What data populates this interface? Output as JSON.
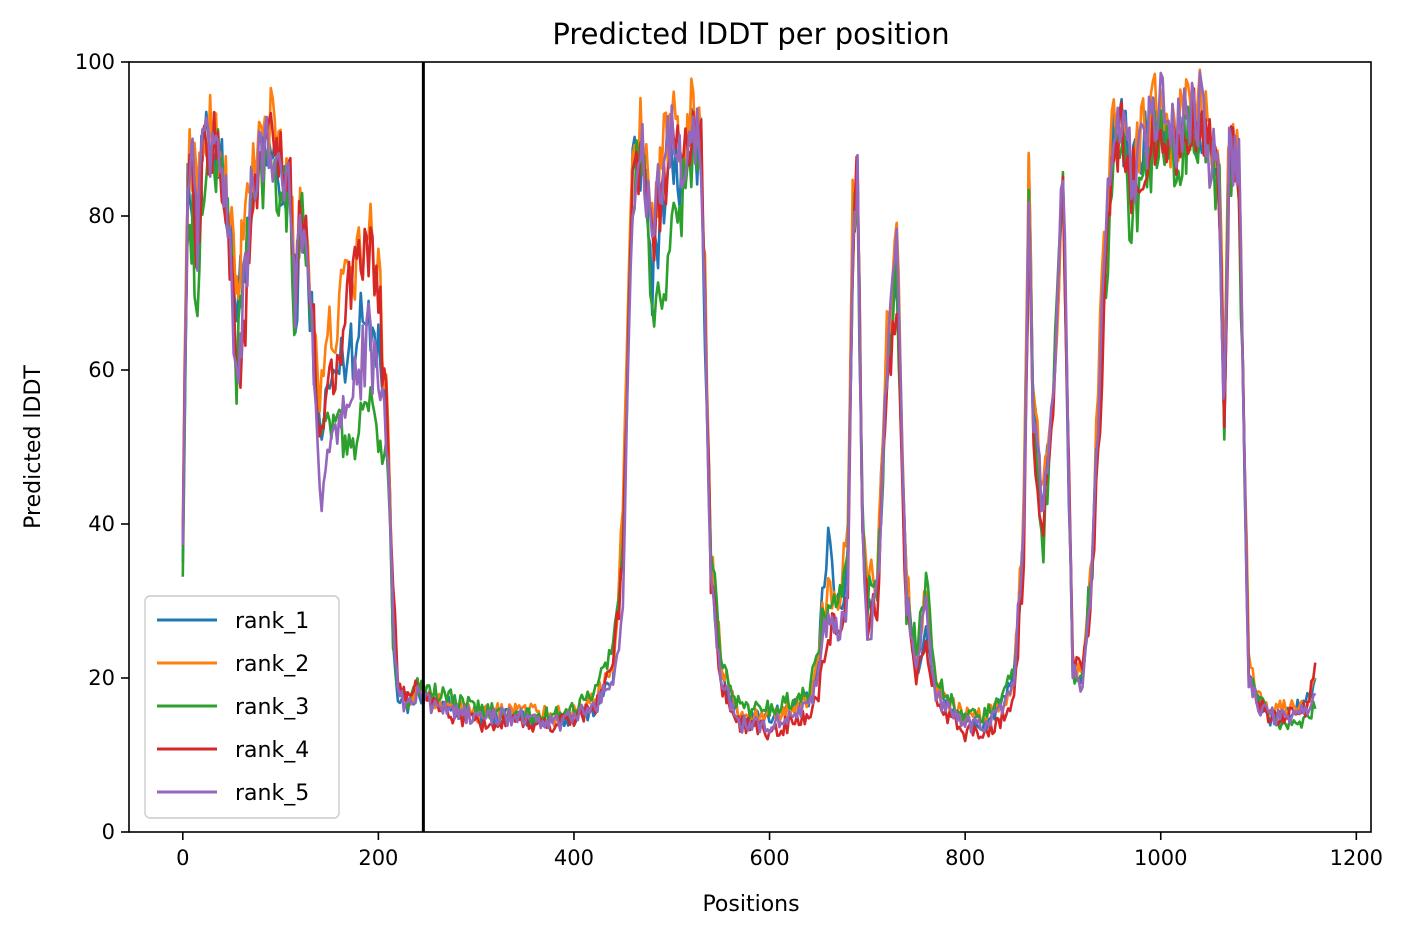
{
  "chart_data": {
    "type": "line",
    "title": "Predicted lDDT per position",
    "xlabel": "Positions",
    "ylabel": "Predicted lDDT",
    "xlim": [
      -55,
      1215
    ],
    "ylim": [
      0,
      100
    ],
    "xticks": [
      0,
      200,
      400,
      600,
      800,
      1000,
      1200
    ],
    "yticks": [
      0,
      20,
      40,
      60,
      80,
      100
    ],
    "grid": false,
    "legend_position": "lower-left",
    "vline": 246,
    "series": [
      {
        "name": "rank_1",
        "color": "#1f77b4",
        "x": [
          0,
          5,
          10,
          15,
          20,
          30,
          40,
          50,
          55,
          60,
          70,
          80,
          90,
          100,
          110,
          115,
          120,
          130,
          140,
          150,
          160,
          170,
          180,
          190,
          200,
          210,
          215,
          220,
          230,
          240,
          260,
          300,
          340,
          380,
          400,
          420,
          440,
          450,
          460,
          470,
          480,
          490,
          500,
          510,
          520,
          530,
          540,
          550,
          570,
          600,
          620,
          640,
          650,
          660,
          670,
          680,
          685,
          690,
          695,
          700,
          710,
          720,
          730,
          740,
          750,
          760,
          770,
          780,
          800,
          820,
          840,
          850,
          860,
          865,
          870,
          880,
          890,
          900,
          910,
          920,
          930,
          940,
          950,
          960,
          970,
          980,
          990,
          1000,
          1010,
          1020,
          1030,
          1040,
          1050,
          1060,
          1065,
          1070,
          1080,
          1090,
          1100,
          1110,
          1130,
          1150,
          1158
        ],
        "y": [
          38,
          82,
          84,
          77,
          88,
          90,
          87,
          76,
          68,
          72,
          82,
          86,
          88,
          84,
          80,
          64,
          80,
          70,
          52,
          58,
          60,
          63,
          65,
          68,
          64,
          52,
          25,
          18,
          16,
          18,
          17,
          15,
          15,
          14,
          15,
          16,
          20,
          40,
          85,
          88,
          72,
          82,
          88,
          84,
          90,
          88,
          35,
          20,
          15,
          15,
          16,
          17,
          22,
          39,
          28,
          35,
          78,
          86,
          40,
          30,
          32,
          62,
          73,
          32,
          20,
          26,
          18,
          17,
          14,
          14,
          17,
          20,
          40,
          83,
          55,
          42,
          58,
          84,
          20,
          20,
          35,
          68,
          90,
          92,
          85,
          88,
          92,
          93,
          88,
          90,
          92,
          92,
          88,
          80,
          50,
          88,
          86,
          20,
          17,
          15,
          15,
          17,
          20
        ]
      },
      {
        "name": "rank_2",
        "color": "#ff7f0e",
        "x": [
          0,
          5,
          10,
          15,
          20,
          30,
          40,
          50,
          55,
          60,
          70,
          80,
          90,
          100,
          110,
          115,
          120,
          130,
          140,
          150,
          160,
          170,
          180,
          190,
          200,
          210,
          215,
          220,
          230,
          240,
          260,
          300,
          340,
          380,
          400,
          420,
          440,
          450,
          460,
          470,
          480,
          490,
          500,
          510,
          520,
          530,
          540,
          550,
          570,
          600,
          620,
          640,
          650,
          660,
          670,
          680,
          685,
          690,
          695,
          700,
          710,
          720,
          730,
          740,
          750,
          760,
          770,
          780,
          800,
          820,
          840,
          850,
          860,
          865,
          870,
          880,
          890,
          900,
          910,
          920,
          930,
          940,
          950,
          960,
          970,
          980,
          990,
          1000,
          1010,
          1020,
          1030,
          1040,
          1050,
          1060,
          1065,
          1070,
          1080,
          1090,
          1100,
          1110,
          1130,
          1150,
          1158
        ],
        "y": [
          42,
          86,
          88,
          80,
          90,
          92,
          88,
          78,
          70,
          75,
          86,
          90,
          92,
          88,
          84,
          70,
          84,
          74,
          56,
          64,
          68,
          72,
          74,
          78,
          72,
          55,
          28,
          19,
          17,
          19,
          17,
          15,
          16,
          15,
          16,
          17,
          22,
          42,
          88,
          92,
          80,
          88,
          92,
          88,
          93,
          92,
          38,
          22,
          15,
          15,
          16,
          17,
          23,
          33,
          30,
          38,
          80,
          88,
          42,
          32,
          34,
          64,
          78,
          34,
          22,
          30,
          19,
          17,
          15,
          15,
          17,
          20,
          42,
          84,
          56,
          44,
          58,
          86,
          21,
          21,
          38,
          70,
          92,
          94,
          88,
          90,
          94,
          96,
          90,
          92,
          95,
          95,
          90,
          84,
          56,
          92,
          88,
          22,
          18,
          16,
          16,
          17,
          20
        ]
      },
      {
        "name": "rank_3",
        "color": "#2ca02c",
        "x": [
          0,
          5,
          10,
          15,
          20,
          30,
          40,
          50,
          55,
          60,
          70,
          80,
          90,
          100,
          110,
          115,
          120,
          130,
          140,
          150,
          160,
          170,
          180,
          190,
          200,
          210,
          215,
          220,
          230,
          240,
          260,
          300,
          340,
          380,
          400,
          420,
          440,
          450,
          460,
          470,
          480,
          490,
          500,
          510,
          520,
          530,
          540,
          550,
          570,
          600,
          620,
          640,
          650,
          660,
          670,
          680,
          685,
          690,
          695,
          700,
          710,
          720,
          730,
          740,
          750,
          760,
          770,
          780,
          800,
          820,
          840,
          850,
          860,
          865,
          870,
          880,
          890,
          900,
          910,
          920,
          930,
          940,
          950,
          960,
          970,
          980,
          990,
          1000,
          1010,
          1020,
          1030,
          1040,
          1050,
          1060,
          1065,
          1070,
          1080,
          1090,
          1100,
          1110,
          1130,
          1150,
          1158
        ],
        "y": [
          36,
          80,
          78,
          64,
          84,
          88,
          86,
          74,
          58,
          70,
          80,
          85,
          88,
          84,
          82,
          66,
          82,
          72,
          50,
          54,
          52,
          50,
          52,
          56,
          52,
          48,
          25,
          19,
          17,
          19,
          18,
          16,
          15,
          15,
          16,
          18,
          24,
          38,
          84,
          88,
          70,
          64,
          78,
          82,
          88,
          86,
          36,
          23,
          16,
          16,
          17,
          18,
          24,
          30,
          29,
          34,
          76,
          84,
          40,
          30,
          32,
          58,
          70,
          30,
          24,
          32,
          20,
          18,
          15,
          15,
          18,
          21,
          38,
          80,
          52,
          38,
          56,
          82,
          20,
          20,
          36,
          64,
          86,
          88,
          80,
          84,
          88,
          90,
          86,
          88,
          90,
          92,
          86,
          82,
          52,
          86,
          84,
          20,
          17,
          15,
          14,
          15,
          16
        ]
      },
      {
        "name": "rank_4",
        "color": "#d62728",
        "x": [
          0,
          5,
          10,
          15,
          20,
          30,
          40,
          50,
          55,
          60,
          70,
          80,
          90,
          100,
          110,
          115,
          120,
          130,
          140,
          150,
          160,
          170,
          180,
          190,
          200,
          210,
          215,
          220,
          230,
          240,
          260,
          300,
          340,
          380,
          400,
          420,
          440,
          450,
          460,
          470,
          480,
          490,
          500,
          510,
          520,
          530,
          540,
          550,
          570,
          600,
          620,
          640,
          650,
          660,
          670,
          680,
          685,
          690,
          695,
          700,
          710,
          720,
          730,
          740,
          750,
          760,
          770,
          780,
          800,
          820,
          840,
          850,
          860,
          865,
          870,
          880,
          890,
          900,
          910,
          920,
          930,
          940,
          950,
          960,
          970,
          980,
          990,
          1000,
          1010,
          1020,
          1030,
          1040,
          1050,
          1060,
          1065,
          1070,
          1080,
          1090,
          1100,
          1110,
          1130,
          1150,
          1158
        ],
        "y": [
          40,
          84,
          82,
          74,
          86,
          90,
          86,
          74,
          60,
          60,
          78,
          86,
          90,
          86,
          84,
          68,
          82,
          72,
          52,
          58,
          64,
          70,
          72,
          76,
          70,
          52,
          30,
          20,
          17,
          19,
          16,
          14,
          14,
          14,
          15,
          16,
          22,
          35,
          84,
          90,
          74,
          84,
          90,
          86,
          92,
          90,
          34,
          19,
          14,
          13,
          14,
          15,
          18,
          26,
          25,
          28,
          74,
          86,
          38,
          28,
          30,
          58,
          70,
          28,
          20,
          24,
          17,
          15,
          13,
          13,
          15,
          18,
          36,
          78,
          50,
          40,
          54,
          84,
          22,
          21,
          32,
          60,
          86,
          90,
          84,
          86,
          90,
          92,
          88,
          90,
          92,
          92,
          88,
          82,
          55,
          88,
          86,
          21,
          17,
          15,
          15,
          16,
          22
        ]
      },
      {
        "name": "rank_5",
        "color": "#9467bd",
        "x": [
          0,
          5,
          10,
          15,
          20,
          30,
          40,
          50,
          55,
          60,
          70,
          80,
          90,
          100,
          110,
          115,
          120,
          130,
          140,
          150,
          160,
          170,
          180,
          190,
          200,
          210,
          215,
          220,
          230,
          240,
          260,
          300,
          340,
          380,
          400,
          420,
          440,
          450,
          460,
          470,
          480,
          490,
          500,
          510,
          520,
          530,
          540,
          550,
          570,
          600,
          620,
          640,
          650,
          660,
          670,
          680,
          685,
          690,
          695,
          700,
          710,
          720,
          730,
          740,
          750,
          760,
          770,
          780,
          800,
          820,
          840,
          850,
          860,
          865,
          870,
          880,
          890,
          900,
          910,
          920,
          930,
          940,
          950,
          960,
          970,
          980,
          990,
          1000,
          1010,
          1020,
          1030,
          1040,
          1050,
          1060,
          1065,
          1070,
          1080,
          1090,
          1100,
          1110,
          1130,
          1150,
          1158
        ],
        "y": [
          40,
          84,
          86,
          76,
          88,
          90,
          86,
          72,
          58,
          66,
          82,
          88,
          90,
          86,
          84,
          68,
          82,
          72,
          42,
          50,
          54,
          58,
          60,
          64,
          58,
          50,
          27,
          18,
          16,
          18,
          16,
          15,
          15,
          14,
          15,
          16,
          20,
          30,
          82,
          90,
          76,
          86,
          90,
          86,
          92,
          90,
          33,
          20,
          14,
          14,
          15,
          16,
          20,
          30,
          26,
          30,
          76,
          86,
          40,
          24,
          30,
          60,
          78,
          30,
          22,
          28,
          18,
          16,
          14,
          14,
          16,
          19,
          38,
          80,
          52,
          42,
          56,
          86,
          21,
          19,
          34,
          66,
          90,
          92,
          86,
          88,
          92,
          94,
          90,
          92,
          94,
          94,
          88,
          84,
          55,
          90,
          86,
          20,
          16,
          15,
          15,
          16,
          18
        ]
      }
    ]
  }
}
